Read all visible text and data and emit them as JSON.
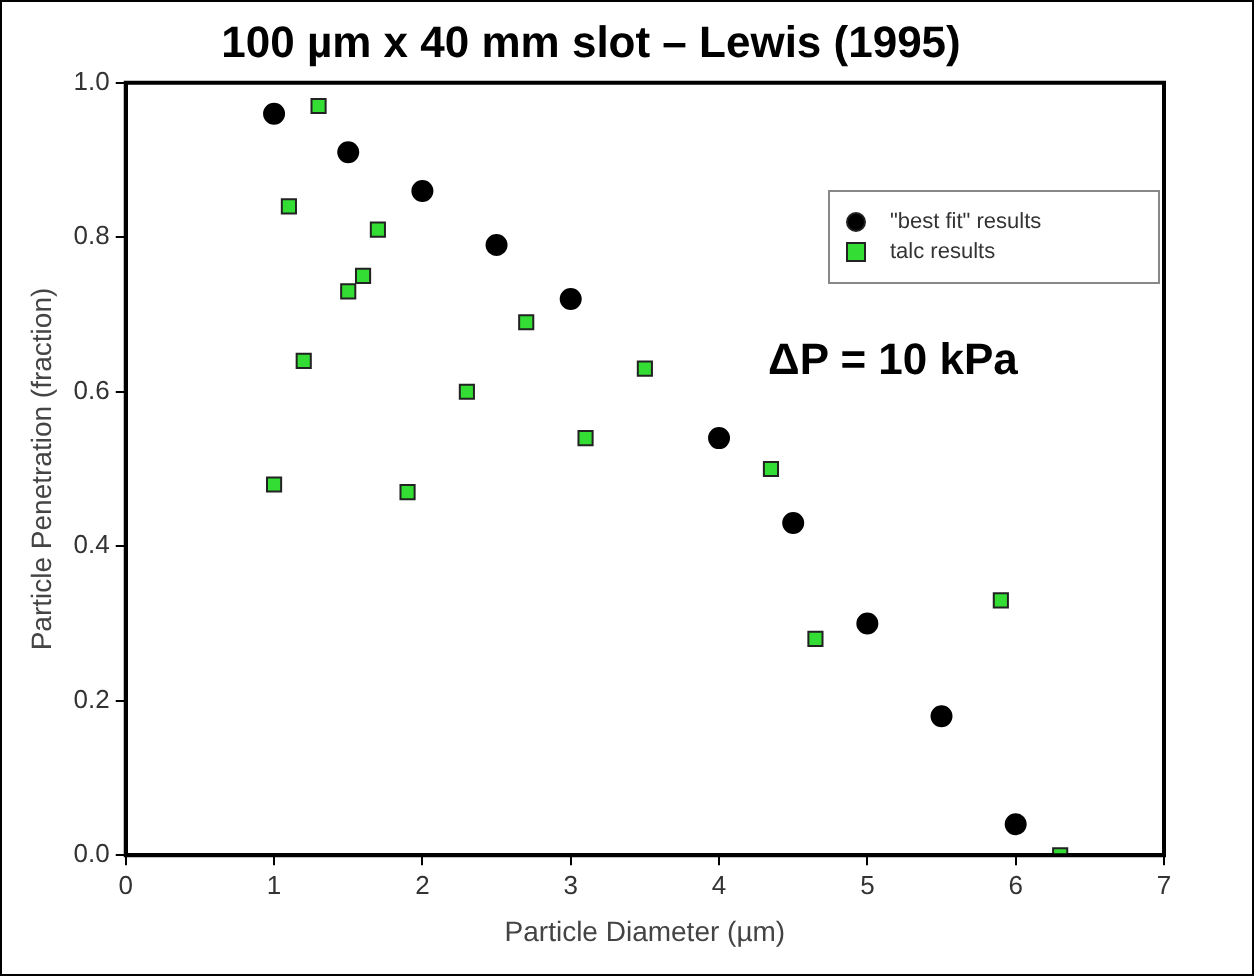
{
  "chart_data": {
    "type": "scatter",
    "title": "100 µm x 40 mm slot – Lewis (1995)",
    "xlabel": "Particle Diameter (µm)",
    "ylabel": "Particle Penetration (fraction)",
    "annotations": [
      "ΔP = 10 kPa"
    ],
    "xlim": [
      0,
      7
    ],
    "xticks": [
      0,
      1,
      2,
      3,
      4,
      5,
      6,
      7
    ],
    "ylim": [
      0,
      1
    ],
    "yticks": [
      {
        "value": 0,
        "label": "0.0"
      },
      0.2,
      0.4,
      0.6,
      0.8,
      {
        "value": 1,
        "label": "1.0"
      }
    ],
    "grid": false,
    "legend": "top right",
    "series": [
      {
        "name": "\"best fit\" results",
        "color": "#000000",
        "marker": "circle",
        "x": [
          1.0,
          1.5,
          2.0,
          2.5,
          3.0,
          4.0,
          4.5,
          5.0,
          5.5,
          6.0
        ],
        "values": [
          0.96,
          0.91,
          0.86,
          0.79,
          0.72,
          0.54,
          0.43,
          0.3,
          0.18,
          0.04
        ]
      },
      {
        "name": "talc results",
        "color": "#33dd33",
        "marker": "square",
        "x": [
          1.0,
          1.1,
          1.2,
          1.3,
          1.5,
          1.6,
          1.7,
          1.9,
          2.3,
          2.7,
          3.1,
          3.5,
          4.35,
          4.65,
          5.9,
          6.3
        ],
        "values": [
          0.48,
          0.84,
          0.64,
          0.97,
          0.73,
          0.75,
          0.81,
          0.47,
          0.6,
          0.69,
          0.54,
          0.63,
          0.5,
          0.28,
          0.33,
          0.0
        ]
      }
    ]
  }
}
